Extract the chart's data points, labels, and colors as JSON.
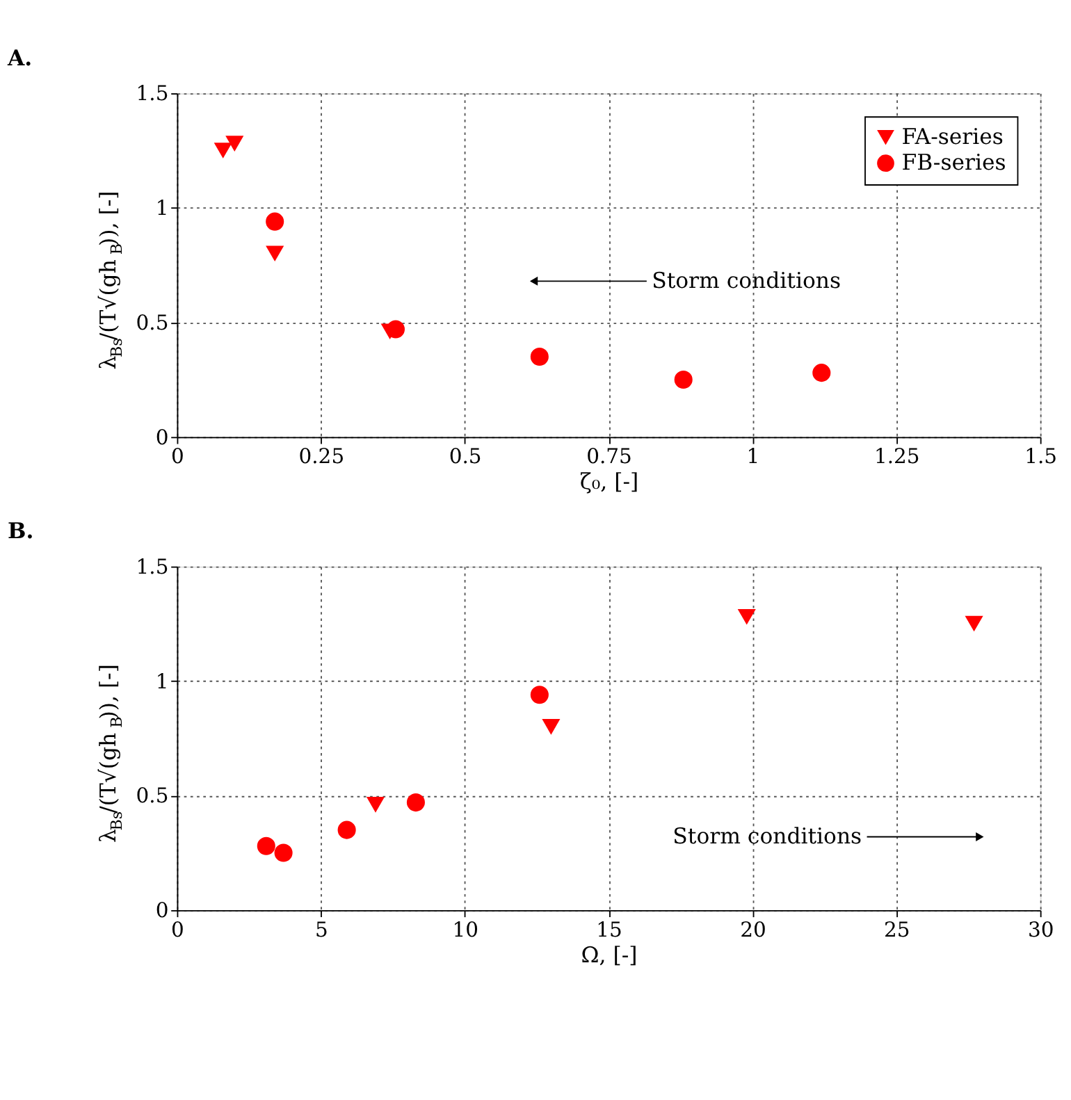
{
  "chart_data": [
    {
      "type": "scatter",
      "title": "A.",
      "xlabel": "ζ₀, [-]",
      "ylabel": "λ$_{Bs}$/(T√(gh$_{B}$)), [-]",
      "xlim": [
        0,
        1.5
      ],
      "xticks": [
        0,
        0.25,
        0.5,
        0.75,
        1,
        1.25,
        1.5
      ],
      "ylim": [
        0,
        1.5
      ],
      "yticks": [
        0,
        0.5,
        1,
        1.5
      ],
      "grid": true,
      "legend": "top right",
      "series": [
        {
          "name": "FA-series",
          "color": "#ff0000",
          "marker": "triangle",
          "x": [
            0.08,
            0.1,
            0.17,
            0.37
          ],
          "values": [
            1.25,
            1.28,
            0.8,
            0.46
          ]
        },
        {
          "name": "FB-series",
          "color": "#ff0000",
          "marker": "circle",
          "x": [
            0.17,
            0.38,
            0.63,
            0.88,
            1.12
          ],
          "values": [
            0.94,
            0.47,
            0.35,
            0.25,
            0.28
          ]
        }
      ],
      "annotations": [
        {
          "text": "Storm conditions",
          "x": 0.62,
          "y": 0.68
        }
      ]
    },
    {
      "type": "scatter",
      "title": "B.",
      "xlabel": "Ω, [-]",
      "ylabel": "λ$_{Bs}$/(T√(gh$_{B}$)), [-]",
      "xlim": [
        0,
        30
      ],
      "xticks": [
        0,
        5,
        10,
        15,
        20,
        25,
        30
      ],
      "ylim": [
        0,
        1.5
      ],
      "yticks": [
        0,
        0.5,
        1,
        1.5
      ],
      "grid": true,
      "legend": false,
      "series": [
        {
          "name": "FA-series",
          "color": "#ff0000",
          "marker": "triangle",
          "x": [
            19.8,
            27.7,
            13.0,
            6.9
          ],
          "values": [
            1.28,
            1.25,
            0.8,
            0.46
          ]
        },
        {
          "name": "FB-series",
          "color": "#ff0000",
          "marker": "circle",
          "x": [
            12.6,
            8.3,
            5.9,
            3.7,
            3.1
          ],
          "values": [
            0.94,
            0.47,
            0.35,
            0.25,
            0.28
          ]
        }
      ],
      "annotations": [
        {
          "text": "Storm conditions",
          "x": 27.9,
          "y": 0.32
        }
      ]
    }
  ]
}
